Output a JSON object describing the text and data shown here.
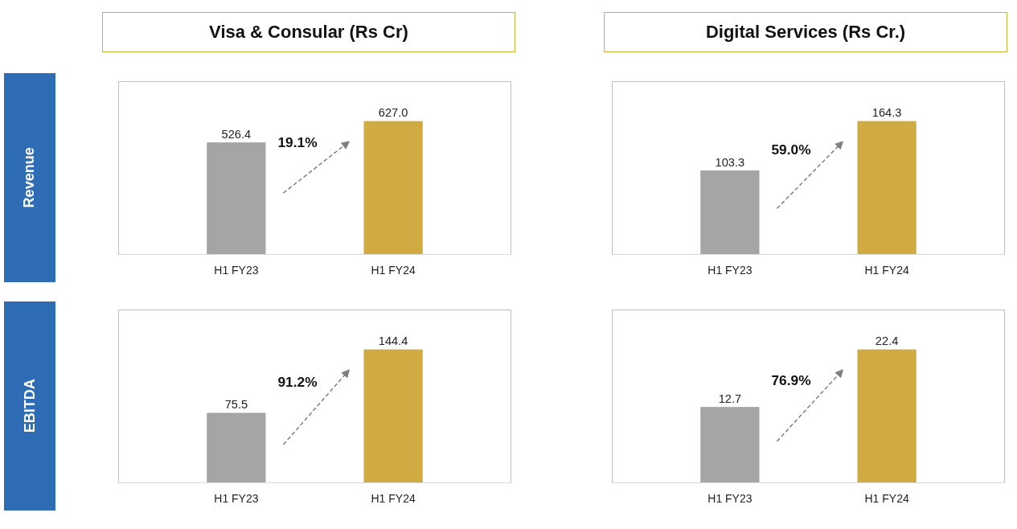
{
  "chart_data": [
    {
      "type": "bar",
      "title": "Visa & Consular (Rs Cr)",
      "ylabel": "Revenue",
      "categories": [
        "H1 FY23",
        "H1 FY24"
      ],
      "values": [
        526.4,
        627.0
      ],
      "colors": [
        "#a5a5a5",
        "#d0ab42"
      ],
      "value_labels": [
        "526.4",
        "627.0"
      ],
      "annotations": [
        "19.1%"
      ]
    },
    {
      "type": "bar",
      "title": "Digital Services (Rs Cr.)",
      "categories": [
        "H1 FY23",
        "H1 FY24"
      ],
      "values": [
        103.3,
        164.3
      ],
      "colors": [
        "#a5a5a5",
        "#d0ab42"
      ],
      "value_labels": [
        "103.3",
        "164.3"
      ],
      "annotations": [
        "59.0%"
      ]
    },
    {
      "type": "bar",
      "ylabel": "EBITDA",
      "categories": [
        "H1 FY23",
        "H1 FY24"
      ],
      "values": [
        75.5,
        144.4
      ],
      "colors": [
        "#a5a5a5",
        "#d0ab42"
      ],
      "value_labels": [
        "75.5",
        "144.4"
      ],
      "annotations": [
        "91.2%"
      ]
    },
    {
      "type": "bar",
      "categories": [
        "H1 FY23",
        "H1 FY24"
      ],
      "values": [
        12.7,
        22.4
      ],
      "colors": [
        "#a5a5a5",
        "#d0ab42"
      ],
      "value_labels": [
        "12.7",
        "22.4"
      ],
      "annotations": [
        "76.9%"
      ]
    }
  ]
}
